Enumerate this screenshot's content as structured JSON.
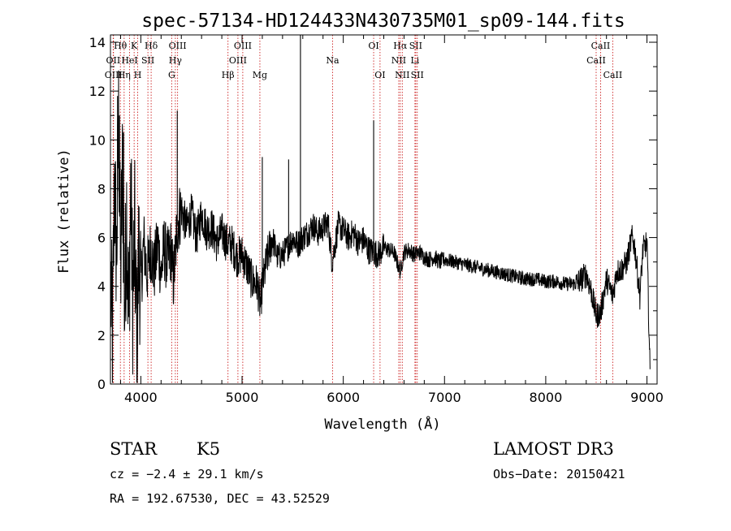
{
  "chart_data": {
    "type": "line",
    "title": "spec-57134-HD124433N430735M01_sp09-144.fits",
    "xlabel": "Wavelength (Å)",
    "ylabel": "Flux (relative)",
    "xlim": [
      3700,
      9100
    ],
    "ylim": [
      0,
      14.3
    ],
    "xticks": [
      4000,
      5000,
      6000,
      7000,
      8000,
      9000
    ],
    "yticks": [
      0,
      2,
      4,
      6,
      8,
      10,
      12,
      14
    ],
    "line_color": "#000000",
    "marker_color": "#cc2222",
    "spectrum_anchors": [
      [
        3705,
        4.0
      ],
      [
        3720,
        1.5
      ],
      [
        3740,
        8.5
      ],
      [
        3760,
        5.0
      ],
      [
        3780,
        10.8
      ],
      [
        3800,
        4.5
      ],
      [
        3820,
        9.0
      ],
      [
        3840,
        3.0
      ],
      [
        3860,
        7.2
      ],
      [
        3880,
        2.5
      ],
      [
        3900,
        8.0
      ],
      [
        3920,
        3.5
      ],
      [
        3940,
        6.0
      ],
      [
        3960,
        1.5
      ],
      [
        3980,
        5.5
      ],
      [
        4000,
        4.0
      ],
      [
        4030,
        5.8
      ],
      [
        4060,
        4.5
      ],
      [
        4100,
        5.6
      ],
      [
        4130,
        4.6
      ],
      [
        4170,
        5.8
      ],
      [
        4200,
        4.5
      ],
      [
        4230,
        5.6
      ],
      [
        4260,
        5.0
      ],
      [
        4300,
        5.5
      ],
      [
        4320,
        4.2
      ],
      [
        4340,
        5.2
      ],
      [
        4360,
        6.5
      ],
      [
        4400,
        7.2
      ],
      [
        4450,
        6.4
      ],
      [
        4500,
        7.0
      ],
      [
        4550,
        6.0
      ],
      [
        4600,
        7.0
      ],
      [
        4650,
        6.3
      ],
      [
        4700,
        6.4
      ],
      [
        4750,
        5.8
      ],
      [
        4800,
        6.2
      ],
      [
        4850,
        5.8
      ],
      [
        4900,
        5.7
      ],
      [
        4950,
        5.2
      ],
      [
        5000,
        5.3
      ],
      [
        5050,
        4.8
      ],
      [
        5100,
        4.2
      ],
      [
        5150,
        4.1
      ],
      [
        5180,
        3.2
      ],
      [
        5200,
        4.0
      ],
      [
        5250,
        5.2
      ],
      [
        5300,
        6.0
      ],
      [
        5350,
        5.2
      ],
      [
        5400,
        5.3
      ],
      [
        5450,
        5.6
      ],
      [
        5500,
        6.0
      ],
      [
        5550,
        5.7
      ],
      [
        5600,
        6.0
      ],
      [
        5650,
        6.2
      ],
      [
        5700,
        6.5
      ],
      [
        5750,
        6.2
      ],
      [
        5800,
        6.4
      ],
      [
        5850,
        6.6
      ],
      [
        5890,
        5.0
      ],
      [
        5950,
        6.5
      ],
      [
        6000,
        6.3
      ],
      [
        6050,
        6.0
      ],
      [
        6100,
        6.2
      ],
      [
        6150,
        5.8
      ],
      [
        6200,
        5.9
      ],
      [
        6250,
        5.5
      ],
      [
        6300,
        5.4
      ],
      [
        6350,
        5.3
      ],
      [
        6400,
        5.6
      ],
      [
        6450,
        5.5
      ],
      [
        6500,
        5.4
      ],
      [
        6563,
        4.6
      ],
      [
        6600,
        5.4
      ],
      [
        6650,
        5.5
      ],
      [
        6700,
        5.3
      ],
      [
        6750,
        5.4
      ],
      [
        6800,
        5.2
      ],
      [
        6850,
        5.1
      ],
      [
        6900,
        5.2
      ],
      [
        6950,
        5.0
      ],
      [
        7000,
        5.1
      ],
      [
        7100,
        5.0
      ],
      [
        7200,
        4.9
      ],
      [
        7300,
        4.8
      ],
      [
        7400,
        4.7
      ],
      [
        7500,
        4.6
      ],
      [
        7600,
        4.5
      ],
      [
        7700,
        4.4
      ],
      [
        7800,
        4.3
      ],
      [
        7900,
        4.3
      ],
      [
        8000,
        4.2
      ],
      [
        8100,
        4.2
      ],
      [
        8200,
        4.1
      ],
      [
        8300,
        4.1
      ],
      [
        8400,
        4.5
      ],
      [
        8450,
        3.8
      ],
      [
        8498,
        2.8
      ],
      [
        8542,
        2.9
      ],
      [
        8600,
        4.3
      ],
      [
        8662,
        3.6
      ],
      [
        8700,
        4.6
      ],
      [
        8750,
        4.7
      ],
      [
        8800,
        5.0
      ],
      [
        8850,
        6.0
      ],
      [
        8880,
        5.6
      ],
      [
        8900,
        4.8
      ],
      [
        8930,
        3.6
      ],
      [
        8960,
        5.5
      ],
      [
        9000,
        5.8
      ],
      [
        9030,
        0.5
      ]
    ],
    "spikes": [
      {
        "x": 5577,
        "y": 14.3
      },
      {
        "x": 6300,
        "y": 10.8
      },
      {
        "x": 4360,
        "y": 11.2
      },
      {
        "x": 3770,
        "y": 11.8
      },
      {
        "x": 3790,
        "y": 11.0
      },
      {
        "x": 3830,
        "y": 10.3
      },
      {
        "x": 5460,
        "y": 9.2
      },
      {
        "x": 5200,
        "y": 9.3
      }
    ],
    "line_markers": [
      {
        "name": "Hθ",
        "x": 3798,
        "row": 0
      },
      {
        "name": "OII",
        "x": 3727,
        "row": 1
      },
      {
        "name": "OIII",
        "x": 3730,
        "row": 2
      },
      {
        "name": "K",
        "x": 3934,
        "row": 0
      },
      {
        "name": "HeI",
        "x": 3889,
        "row": 1
      },
      {
        "name": "Hη",
        "x": 3835,
        "row": 2
      },
      {
        "name": "Hδ",
        "x": 4102,
        "row": 0
      },
      {
        "name": "SII",
        "x": 4070,
        "row": 1
      },
      {
        "name": "H",
        "x": 3969,
        "row": 2
      },
      {
        "name": "OIII",
        "x": 4363,
        "row": 0
      },
      {
        "name": "Hγ",
        "x": 4341,
        "row": 1
      },
      {
        "name": "G",
        "x": 4305,
        "row": 2
      },
      {
        "name": "OIII",
        "x": 5007,
        "row": 0
      },
      {
        "name": "OIII",
        "x": 4959,
        "row": 1
      },
      {
        "name": "Hβ",
        "x": 4861,
        "row": 2
      },
      {
        "name": "Mg",
        "x": 5176,
        "row": 2
      },
      {
        "name": "Na",
        "x": 5894,
        "row": 1
      },
      {
        "name": "OI",
        "x": 6300,
        "row": 0
      },
      {
        "name": "OI",
        "x": 6363,
        "row": 2
      },
      {
        "name": "Hα",
        "x": 6563,
        "row": 0
      },
      {
        "name": "NII",
        "x": 6548,
        "row": 1
      },
      {
        "name": "NII",
        "x": 6583,
        "row": 2
      },
      {
        "name": "SII",
        "x": 6716,
        "row": 0
      },
      {
        "name": "Li",
        "x": 6708,
        "row": 1
      },
      {
        "name": "SII",
        "x": 6731,
        "row": 2
      },
      {
        "name": "CaII",
        "x": 8542,
        "row": 0
      },
      {
        "name": "CaII",
        "x": 8498,
        "row": 1
      },
      {
        "name": "CaII",
        "x": 8662,
        "row": 2
      }
    ]
  },
  "info": {
    "object_class": "STAR",
    "subclass": "K5",
    "survey": "LAMOST DR3",
    "cz": "cz = −2.4 ± 29.1 km/s",
    "obs_date": "Obs−Date: 20150421",
    "coords": "RA = 192.67530, DEC =  43.52529"
  }
}
